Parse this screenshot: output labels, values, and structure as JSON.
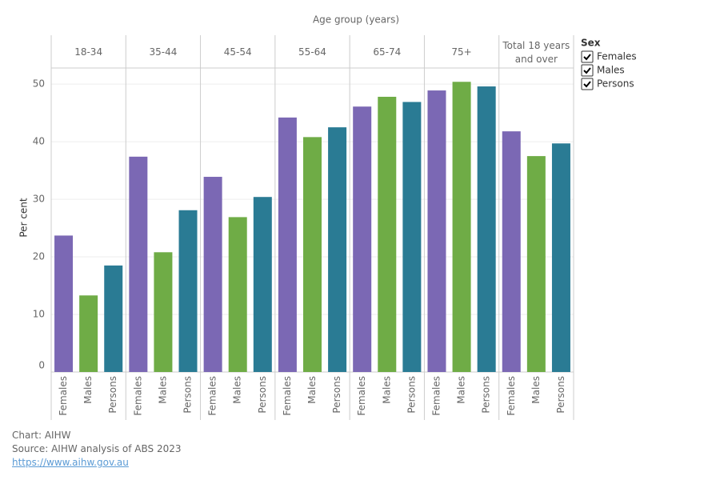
{
  "chart_data": {
    "type": "bar",
    "x_label": "Age group (years)",
    "y_label": "Per cent",
    "categories": [
      "18-34",
      "35-44",
      "45-54",
      "55-64",
      "65-74",
      "75+",
      "Total 18 years and over"
    ],
    "series": [
      {
        "name": "Females",
        "color": "#7b68b4",
        "values": [
          23.7,
          37.4,
          33.9,
          44.2,
          46.1,
          48.9,
          41.8
        ]
      },
      {
        "name": "Males",
        "color": "#6fac46",
        "values": [
          13.3,
          20.8,
          26.9,
          40.8,
          47.8,
          50.4,
          37.5
        ]
      },
      {
        "name": "Persons",
        "color": "#2a7b94",
        "values": [
          18.5,
          28.1,
          30.4,
          42.5,
          46.9,
          49.6,
          39.7
        ]
      }
    ],
    "ylim": [
      0,
      52.8
    ],
    "yticks": [
      0,
      10,
      20,
      30,
      40,
      50
    ],
    "grid": true,
    "legend_title": "Sex"
  },
  "footer": {
    "chart": "Chart: AIHW",
    "source": "Source: AIHW analysis of ABS 2023",
    "link": "https://www.aihw.gov.au"
  }
}
